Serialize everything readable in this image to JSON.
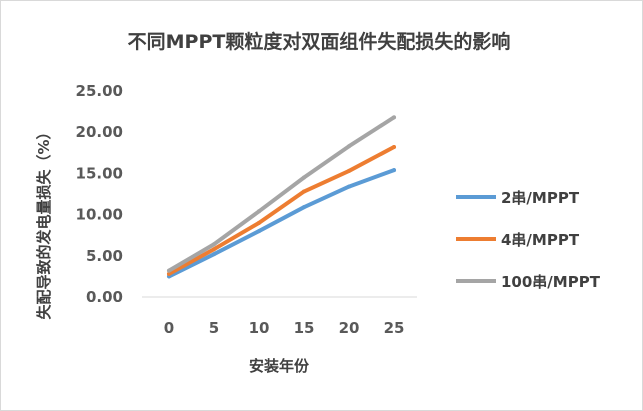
{
  "chart_data": {
    "type": "line",
    "title": "不同MPPT颗粒度对双面组件失配损失的影响",
    "xlabel": "安装年份",
    "ylabel": "失配导致的发电量损失（%）",
    "x": [
      0,
      5,
      10,
      15,
      20,
      25
    ],
    "x_tick_labels": [
      "0",
      "5",
      "10",
      "15",
      "20",
      "25"
    ],
    "ylim": [
      0,
      25
    ],
    "y_tick_labels": [
      "0.00",
      "5.00",
      "10.00",
      "15.00",
      "20.00",
      "25.00"
    ],
    "y_ticks": [
      0,
      5,
      10,
      15,
      20,
      25
    ],
    "grid": false,
    "legend_position": "right",
    "series": [
      {
        "name": "2串/MPPT",
        "color": "#5b9bd5",
        "values": [
          2.5,
          5.2,
          8.0,
          10.9,
          13.4,
          15.4
        ]
      },
      {
        "name": "4串/MPPT",
        "color": "#ed7d31",
        "values": [
          2.8,
          5.8,
          9.0,
          12.8,
          15.3,
          18.2
        ]
      },
      {
        "name": "100串/MPPT",
        "color": "#a5a5a5",
        "values": [
          3.2,
          6.4,
          10.4,
          14.5,
          18.3,
          21.8
        ]
      }
    ]
  }
}
